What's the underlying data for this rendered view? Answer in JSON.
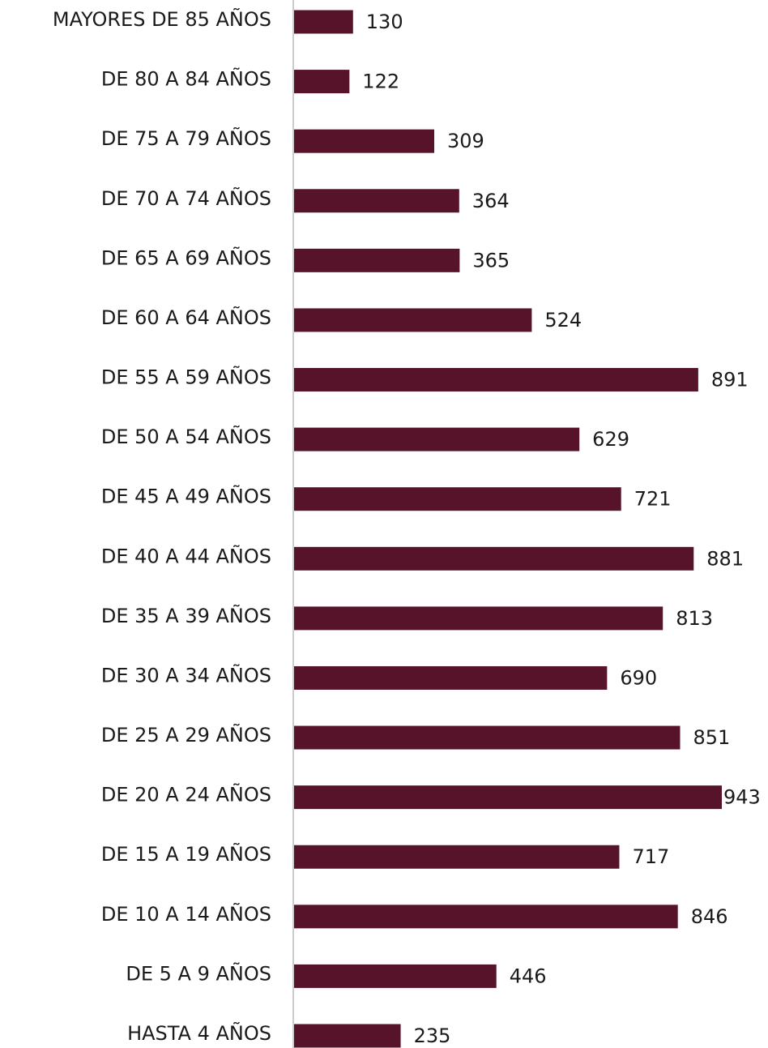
{
  "chart_data": {
    "type": "barh",
    "categories": [
      "MAYORES DE 85 AÑOS",
      "DE 80 A 84 AÑOS",
      "DE 75 A 79 AÑOS",
      "DE 70 A 74 AÑOS",
      "DE 65 A 69 AÑOS",
      "DE 60 A 64 AÑOS",
      "DE 55 A 59 AÑOS",
      "DE 50 A 54 AÑOS",
      "DE 45 A 49 AÑOS",
      "DE 40 A 44 AÑOS",
      "DE 35 A 39 AÑOS",
      "DE 30 A 34 AÑOS",
      "DE 25 A 29 AÑOS",
      "DE 20 A 24 AÑOS",
      "DE 15 A 19 AÑOS",
      "DE 10 A 14 AÑOS",
      "DE 5 A 9 AÑOS",
      "HASTA 4 AÑOS"
    ],
    "values": [
      130,
      122,
      309,
      364,
      365,
      524,
      891,
      629,
      721,
      881,
      813,
      690,
      851,
      943,
      717,
      846,
      446,
      235
    ],
    "color": "#561329"
  }
}
